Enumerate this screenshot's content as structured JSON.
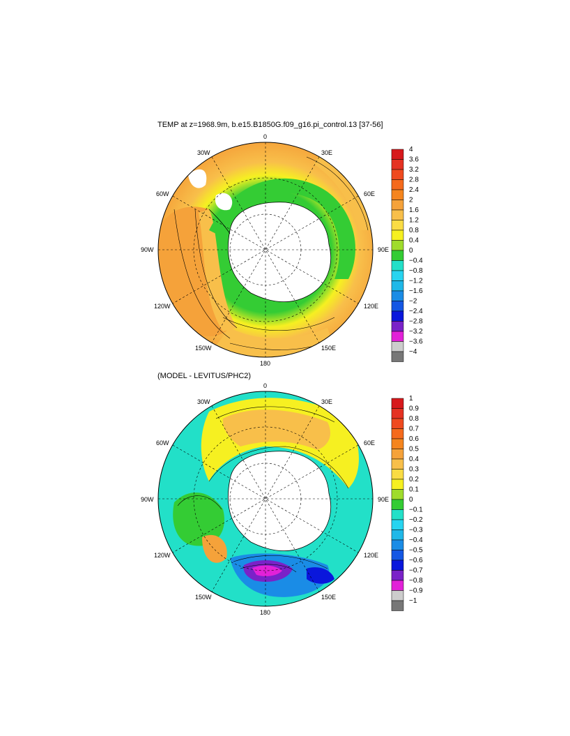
{
  "panel1": {
    "title": "TEMP at z=1968.9m, b.e15.B1850G.f09_g16.pi_control.13 [37-56]",
    "lon_labels": {
      "n": "0",
      "e30": "30E",
      "e60": "60E",
      "e90": "90E",
      "e120": "120E",
      "e150": "150E",
      "s": "180",
      "w150": "150W",
      "w120": "120W",
      "w90": "90W",
      "w60": "60W",
      "w30": "30W"
    },
    "colorbar": {
      "labels": [
        "4",
        "3.6",
        "3.2",
        "2.8",
        "2.4",
        "2",
        "1.6",
        "1.2",
        "0.8",
        "0.4",
        "0",
        "-0.4",
        "-0.8",
        "-1.2",
        "-1.6",
        "-2",
        "-2.4",
        "-2.8",
        "-3.2",
        "-3.6",
        "-4"
      ],
      "colors": [
        "#d7191c",
        "#e53222",
        "#ef4a1f",
        "#f56a1c",
        "#f5851e",
        "#f5a23a",
        "#f8bf4a",
        "#fadc44",
        "#f6f021",
        "#9fdc2c",
        "#34cc34",
        "#22e0c8",
        "#27d4f0",
        "#1fb8e8",
        "#1a8ce6",
        "#1457e4",
        "#0a17dc",
        "#7a22c8",
        "#e221d8",
        "#cccccc",
        "#777777"
      ]
    }
  },
  "panel2": {
    "title": "(MODEL - LEVITUS/PHC2)",
    "lon_labels": {
      "n": "0",
      "e30": "30E",
      "e60": "60E",
      "e90": "90E",
      "e120": "120E",
      "e150": "150E",
      "s": "180",
      "w150": "150W",
      "w120": "120W",
      "w90": "90W",
      "w60": "60W",
      "w30": "30W"
    },
    "colorbar": {
      "labels": [
        "1",
        "0.9",
        "0.8",
        "0.7",
        "0.6",
        "0.5",
        "0.4",
        "0.3",
        "0.2",
        "0.1",
        "0",
        "-0.1",
        "-0.2",
        "-0.3",
        "-0.4",
        "-0.5",
        "-0.6",
        "-0.7",
        "-0.8",
        "-0.9",
        "-1"
      ],
      "colors": [
        "#d7191c",
        "#e53222",
        "#ef4a1f",
        "#f56a1c",
        "#f5851e",
        "#f5a23a",
        "#f8bf4a",
        "#fadc44",
        "#f6f021",
        "#9fdc2c",
        "#34cc34",
        "#22e0c8",
        "#27d4f0",
        "#1fb8e8",
        "#1a8ce6",
        "#1457e4",
        "#0a17dc",
        "#7a22c8",
        "#e221d8",
        "#cccccc",
        "#777777"
      ]
    }
  }
}
